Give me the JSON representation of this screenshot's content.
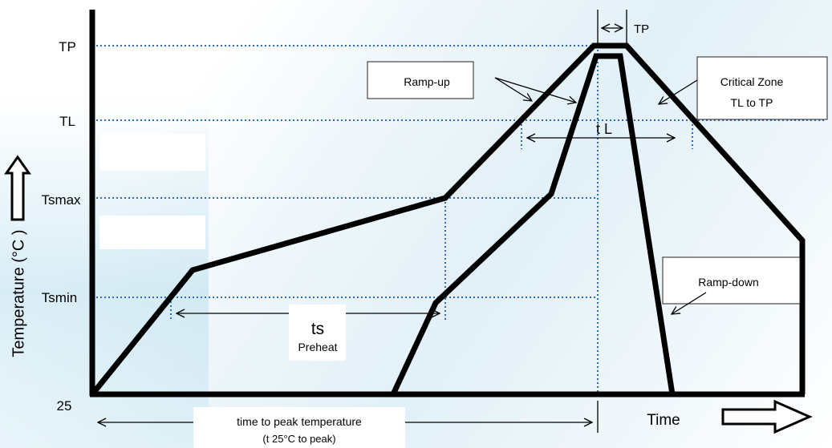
{
  "y_axis": {
    "label": "Temperature (°C )",
    "levels": {
      "tp": "TP",
      "tl": "TL",
      "tsmax": "Tsmax",
      "tsmin": "Tsmin",
      "t25": "25"
    }
  },
  "x_axis": {
    "label": "Time"
  },
  "labels": {
    "tp_width": "TP",
    "ramp_up": "Ramp-up",
    "critical_zone_line1": "Critical Zone",
    "critical_zone_line2": "TL to TP",
    "tl_duration": "t L",
    "ramp_down": "Ramp-down",
    "ts": "ts",
    "preheat": "Preheat",
    "time_to_peak_line1": "time to peak temperature",
    "time_to_peak_line2": "(t 25°C to peak)"
  },
  "colors": {
    "curve": "#000000",
    "guide": "#2e6db5",
    "box_border": "#222222",
    "box_fill": "#ffffff"
  }
}
